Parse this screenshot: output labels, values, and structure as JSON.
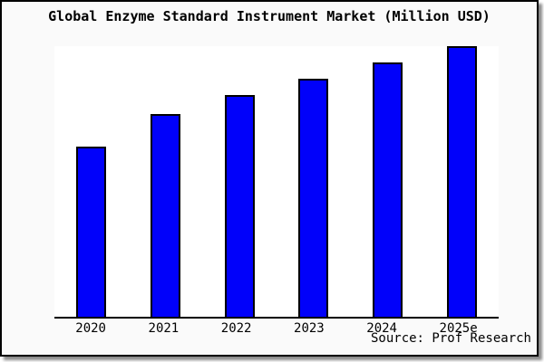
{
  "page": {
    "background": "#ffffff",
    "card_background": "#fafafa",
    "border_color": "#000000",
    "shadow_color": "#8a8a8a"
  },
  "chart_data": {
    "type": "bar",
    "title": "Global Enzyme Standard Instrument Market (Million USD)",
    "categories": [
      "2020",
      "2021",
      "2022",
      "2023",
      "2024",
      "2025e"
    ],
    "values": [
      63,
      75,
      82,
      88,
      94,
      100
    ],
    "values_note": "No y-axis ticks or data labels visible; values estimated from bar pixel heights as percent of tallest bar (2025e = 100)",
    "xlabel": "",
    "ylabel": "",
    "ylim": [
      0,
      100
    ],
    "grid": false,
    "legend": false,
    "y_axis_visible": false,
    "bar_color": "#0101fa",
    "bar_border_color": "#000000",
    "plot_background": "#ffffff",
    "source": "Source: Prof Research"
  }
}
